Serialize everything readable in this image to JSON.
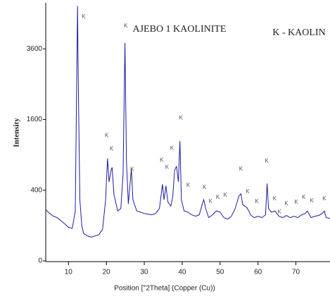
{
  "chart_data": {
    "type": "line",
    "title": "AJEBO 1 KAOLINITE",
    "legend_note": "K - KAOLIN",
    "xlabel": "Position [°2Theta] (Copper (Cu))",
    "ylabel": "Intensity",
    "yscale": "sqrt",
    "grid": false,
    "xlim": [
      4,
      79
    ],
    "ylim": [
      0,
      5300
    ],
    "xticks": [
      10,
      20,
      30,
      40,
      50,
      60,
      70
    ],
    "yticks": [
      0,
      400,
      1600,
      3600
    ],
    "x": [
      4,
      5,
      6,
      7,
      8,
      9,
      10,
      11,
      11.8,
      12.2,
      12.4,
      12.6,
      13,
      13.5,
      14,
      15,
      16,
      17,
      18,
      19,
      19.8,
      20.3,
      20.7,
      21.2,
      21.5,
      22,
      23,
      23.8,
      24.4,
      24.9,
      25.3,
      25.8,
      26.6,
      27,
      28,
      29,
      30,
      31,
      32,
      33,
      34,
      34.8,
      35.2,
      35.7,
      36.2,
      37,
      37.5,
      38,
      38.5,
      39,
      39.4,
      39.8,
      40.5,
      41.5,
      42.5,
      43.5,
      44.5,
      45.3,
      45.7,
      46.2,
      47,
      48,
      49,
      50,
      51,
      52,
      53,
      54,
      55,
      55.5,
      56,
      57,
      57.6,
      58,
      59,
      60,
      61,
      62,
      62.4,
      62.8,
      63.5,
      64.5,
      65.5,
      66.5,
      67.5,
      68.5,
      69.5,
      70.5,
      71.5,
      72.5,
      73,
      74,
      75,
      76,
      77,
      77.5,
      78,
      79
    ],
    "series": [
      {
        "name": "AJEBO 1 KAOLINITE",
        "color": "#1c1ca6",
        "values": [
          210,
          180,
          160,
          150,
          130,
          110,
          90,
          85,
          200,
          3000,
          5200,
          2500,
          300,
          100,
          60,
          50,
          45,
          50,
          55,
          80,
          300,
          840,
          500,
          650,
          700,
          350,
          200,
          220,
          600,
          3800,
          800,
          260,
          680,
          300,
          200,
          190,
          180,
          175,
          170,
          180,
          220,
          470,
          300,
          450,
          280,
          240,
          330,
          650,
          720,
          500,
          1150,
          300,
          200,
          190,
          170,
          160,
          170,
          260,
          300,
          220,
          150,
          170,
          200,
          190,
          150,
          140,
          160,
          220,
          340,
          360,
          250,
          230,
          200,
          170,
          150,
          160,
          150,
          170,
          480,
          220,
          190,
          200,
          160,
          150,
          165,
          150,
          160,
          150,
          170,
          180,
          200,
          150,
          160,
          165,
          180,
          200,
          150,
          145
        ]
      }
    ],
    "annotations": [
      {
        "text": "K",
        "x": 14.0,
        "y": 4761
      },
      {
        "text": "K",
        "x": 20.1,
        "y": 1253
      },
      {
        "text": "K",
        "x": 21.4,
        "y": 999
      },
      {
        "text": "K",
        "x": 25.1,
        "y": 4409
      },
      {
        "text": "K",
        "x": 26.8,
        "y": 666
      },
      {
        "text": "K",
        "x": 34.6,
        "y": 807
      },
      {
        "text": "K",
        "x": 36.0,
        "y": 697
      },
      {
        "text": "K",
        "x": 37.3,
        "y": 1011
      },
      {
        "text": "K",
        "x": 39.7,
        "y": 1632
      },
      {
        "text": "K",
        "x": 41.6,
        "y": 458
      },
      {
        "text": "K",
        "x": 45.9,
        "y": 433
      },
      {
        "text": "K",
        "x": 47.5,
        "y": 282
      },
      {
        "text": "K",
        "x": 49.4,
        "y": 324
      },
      {
        "text": "K",
        "x": 51.4,
        "y": 346
      },
      {
        "text": "K",
        "x": 55.5,
        "y": 676
      },
      {
        "text": "K",
        "x": 57.3,
        "y": 384
      },
      {
        "text": "K",
        "x": 59.7,
        "y": 282
      },
      {
        "text": "K",
        "x": 62.3,
        "y": 795
      },
      {
        "text": "K",
        "x": 64.4,
        "y": 310
      },
      {
        "text": "K",
        "x": 65.7,
        "y": 190
      },
      {
        "text": "K",
        "x": 67.5,
        "y": 262
      },
      {
        "text": "K",
        "x": 70.1,
        "y": 276
      },
      {
        "text": "K",
        "x": 72.1,
        "y": 324
      },
      {
        "text": "K",
        "x": 74.2,
        "y": 289
      },
      {
        "text": "K",
        "x": 77.5,
        "y": 310
      }
    ]
  }
}
